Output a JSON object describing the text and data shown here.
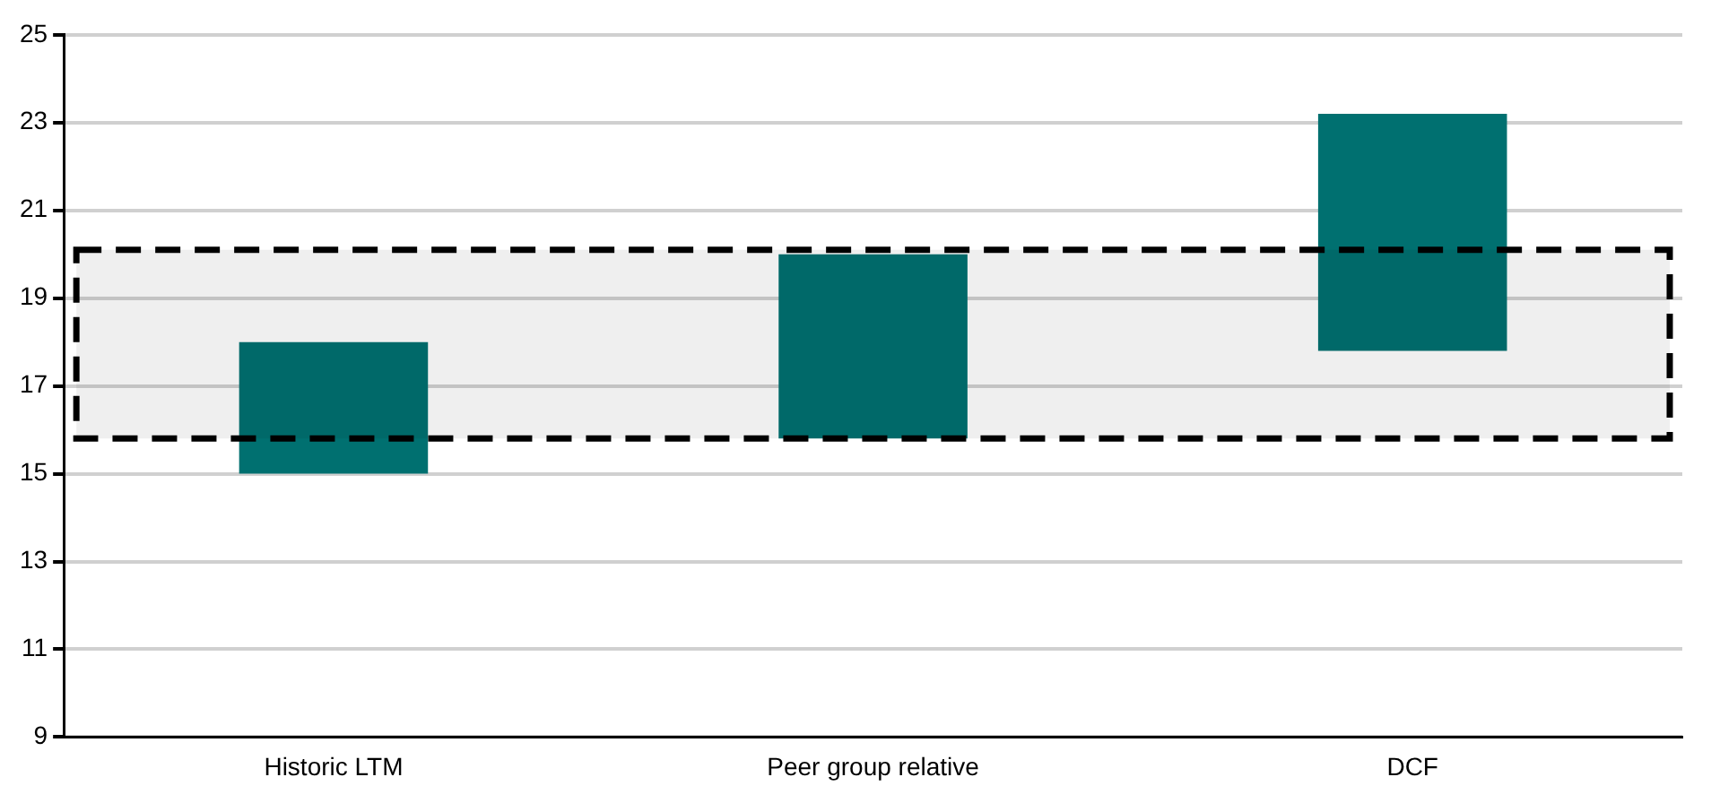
{
  "chart_data": {
    "type": "bar",
    "categories": [
      "Historic LTM",
      "Peer group relative",
      "DCF"
    ],
    "base": [
      15,
      15.8,
      17.8
    ],
    "values": [
      3,
      4.2,
      5.4
    ],
    "color": "#007070",
    "ylim": [
      9,
      25
    ],
    "yticks": [
      9,
      11,
      13,
      15,
      17,
      19,
      21,
      23,
      25
    ],
    "grid": "y",
    "legend": false,
    "bands": [
      {
        "axis": "y",
        "from": 15.8,
        "to": 20.1,
        "color": "#000000"
      }
    ]
  }
}
